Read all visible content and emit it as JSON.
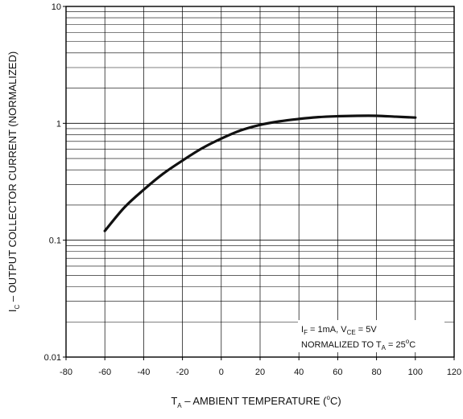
{
  "chart_data": {
    "type": "line",
    "title": "",
    "xlabel": {
      "prefix": "T",
      "sub": "A",
      "suffix": " – AMBIENT TEMPERATURE (",
      "sup": "o",
      "end": "C)"
    },
    "ylabel": {
      "prefix": "I",
      "sub": "C",
      "suffix": " – OUTPUT COLLECTOR  CURRENT (NORMALIZED)"
    },
    "xlim": [
      -80,
      120
    ],
    "ylim": [
      0.01,
      10
    ],
    "yscale": "log",
    "grid": true,
    "x_ticks": [
      -80,
      -60,
      -40,
      -20,
      0,
      20,
      40,
      60,
      80,
      100,
      120
    ],
    "x_tick_labels": [
      "-80",
      "-60",
      "-40",
      "-20",
      "0",
      "20",
      "40",
      "60",
      "80",
      "100",
      "120"
    ],
    "y_ticks": [
      0.01,
      0.1,
      1,
      10
    ],
    "y_tick_labels": [
      "0.01",
      "0.1",
      "1",
      "10"
    ],
    "series": [
      {
        "name": "",
        "color": "#111111",
        "x": [
          -60,
          -50,
          -40,
          -30,
          -20,
          -10,
          0,
          10,
          20,
          30,
          40,
          50,
          60,
          70,
          80,
          90,
          100
        ],
        "y": [
          0.12,
          0.19,
          0.27,
          0.37,
          0.48,
          0.61,
          0.74,
          0.87,
          0.97,
          1.04,
          1.09,
          1.13,
          1.15,
          1.16,
          1.16,
          1.14,
          1.12
        ]
      }
    ],
    "annotation": {
      "line1": {
        "a": "I",
        "a_sub": "F",
        "b": " = 1mA, V",
        "b_sub": "CE",
        "c": " = 5V"
      },
      "line2": {
        "a": "NORMALIZED TO T",
        "a_sub": "A",
        "b": " = 25",
        "b_sup": "o",
        "c": "C"
      }
    }
  }
}
